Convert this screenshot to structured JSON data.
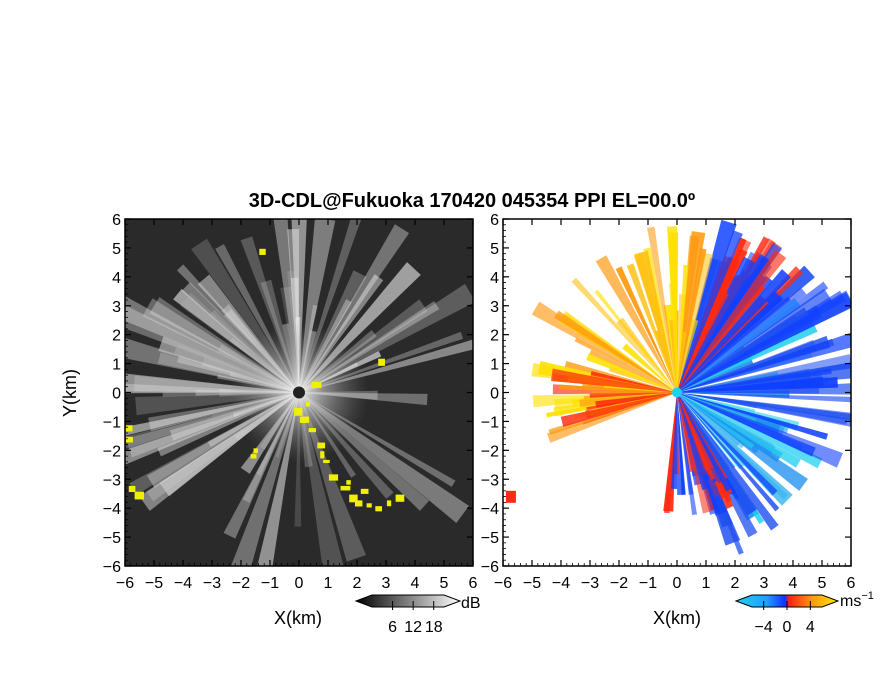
{
  "chart_data": [
    {
      "type": "heatmap",
      "title": "3D-CDL@Fukuoka 170420 045354 PPI EL=00.0º",
      "panel": "reflectivity",
      "xlabel": "X(km)",
      "ylabel": "Y(km)",
      "xlim": [
        -6,
        6
      ],
      "ylim": [
        -6,
        6
      ],
      "x_ticks": [
        "−6",
        "−5",
        "−4",
        "−3",
        "−2",
        "−1",
        "0",
        "1",
        "2",
        "3",
        "4",
        "5",
        "6"
      ],
      "y_ticks": [
        "6",
        "5",
        "4",
        "3",
        "2",
        "1",
        "0",
        "−1",
        "−2",
        "−3",
        "−4",
        "−5",
        "−6"
      ],
      "colorbar": {
        "unit": "dB",
        "ticks": [
          "6",
          "12",
          "18"
        ],
        "range": [
          0,
          21
        ],
        "colormap": "grayscale",
        "extend": "both"
      },
      "highlight_color": "#f0f000",
      "background_color": "#2a2a2a"
    },
    {
      "type": "heatmap",
      "panel": "doppler-velocity",
      "xlabel": "X(km)",
      "ylabel": "",
      "xlim": [
        -6,
        6
      ],
      "ylim": [
        -6,
        6
      ],
      "x_ticks": [
        "−6",
        "−5",
        "−4",
        "−3",
        "−2",
        "−1",
        "0",
        "1",
        "2",
        "3",
        "4",
        "5",
        "6"
      ],
      "y_ticks": [
        "6",
        "5",
        "4",
        "3",
        "2",
        "1",
        "0",
        "−1",
        "−2",
        "−3",
        "−4",
        "−5",
        "−6"
      ],
      "colorbar": {
        "unit": "ms",
        "unit_exponent": "−1",
        "ticks": [
          "−4",
          "0",
          "4"
        ],
        "range": [
          -6,
          6
        ],
        "colormap": "cyan-blue-red-orange-yellow",
        "extend": "both"
      },
      "colors": {
        "cyan": "#20d0f0",
        "blue": "#1040ff",
        "red": "#ff2a10",
        "orange": "#ff9a10",
        "yellow": "#ffe000"
      }
    }
  ]
}
